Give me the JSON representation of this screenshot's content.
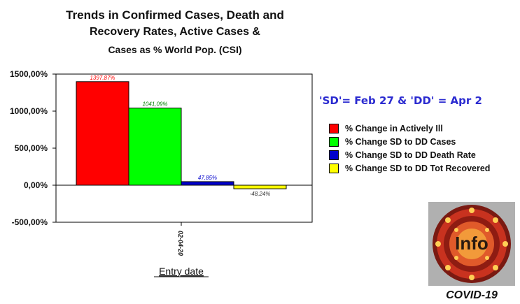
{
  "header": {
    "title_line1": "Trends in Confirmed Cases, Death and",
    "title_line2": "Recovery Rates, Active Cases &",
    "title_line3": "Cases as % World Pop. (CSI)"
  },
  "note": "'SD'= Feb 27 & 'DD' = Apr 2",
  "chart_data": {
    "type": "bar",
    "title": "Trends in Confirmed Cases, Death and Recovery Rates, Active Cases & Cases as % World Pop. (CSI)",
    "xlabel": "Entry date",
    "ylabel": "",
    "categories": [
      "02-04-20"
    ],
    "ylim": [
      -500,
      1500
    ],
    "yticks": [
      -500,
      0,
      500,
      1000,
      1500
    ],
    "ytick_labels": [
      "-500,00%",
      "0,00%",
      "500,00%",
      "1000,00%",
      "1500,00%"
    ],
    "grid": false,
    "legend_position": "right",
    "series": [
      {
        "name": "% Change in Actively Ill",
        "values": [
          1397.87
        ],
        "label": "1397,87%",
        "color": "#ff0000",
        "label_color": "#ff0000"
      },
      {
        "name": "% Change SD to DD Cases",
        "values": [
          1041.09
        ],
        "label": "1041,09%",
        "color": "#00ff00",
        "label_color": "#008000"
      },
      {
        "name": "% Change SD to DD Death Rate",
        "values": [
          47.85
        ],
        "label": "47,85%",
        "color": "#0000cc",
        "label_color": "#0000cc"
      },
      {
        "name": "% Change SD to DD Tot Recovered",
        "values": [
          -48.24
        ],
        "label": "-48,24%",
        "color": "#ffff00",
        "label_color": "#333333"
      }
    ]
  },
  "badge": {
    "logo_text": "Info",
    "label": "COVID-19",
    "icon": "covid-virus-icon"
  }
}
